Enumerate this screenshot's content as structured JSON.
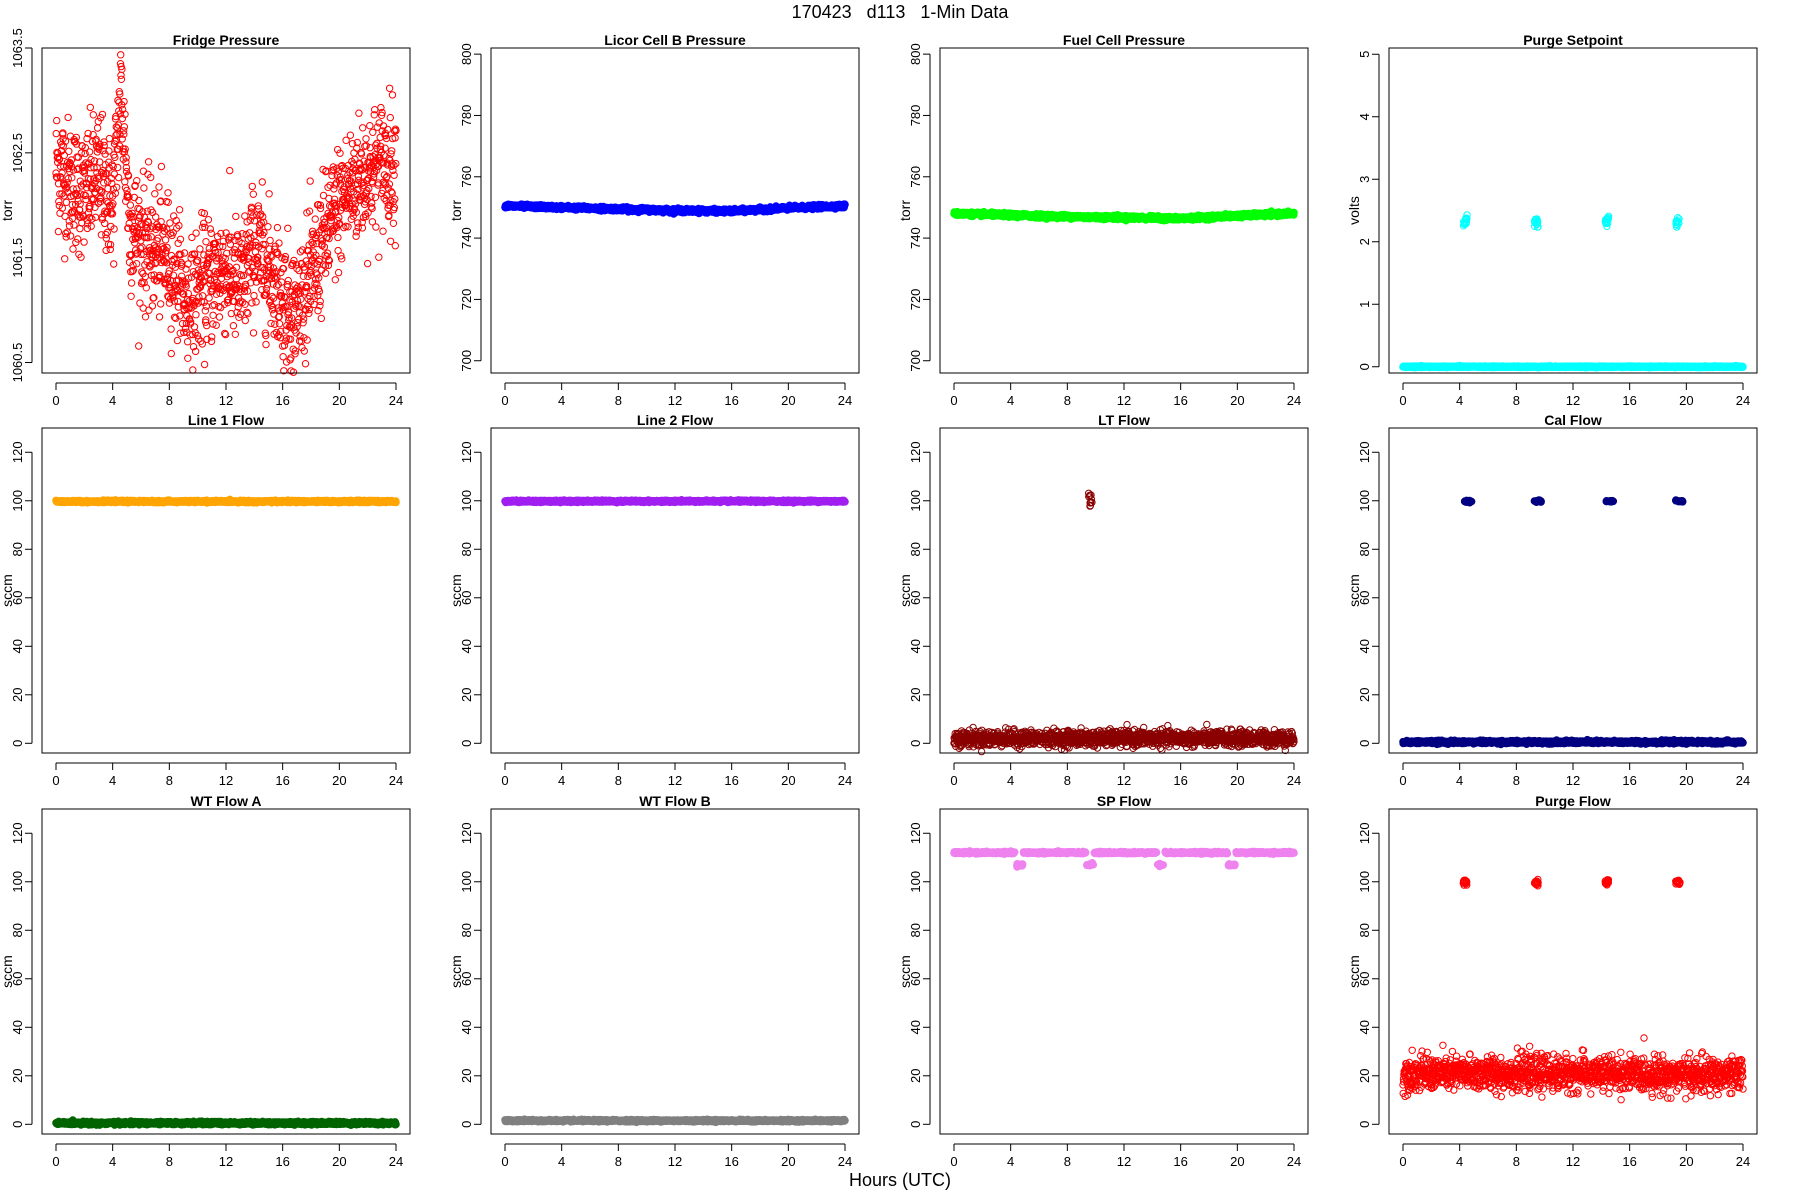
{
  "figure": {
    "title": "170423   d113   1-Min Data",
    "xlabel": "Hours (UTC)"
  },
  "chart_data": [
    {
      "type": "scatter",
      "title": "Fridge Pressure",
      "ylabel": "torr",
      "xlim": [
        0,
        24
      ],
      "xticks": [
        0,
        4,
        8,
        12,
        16,
        20,
        24
      ],
      "ylim": [
        1060.4,
        1063.5
      ],
      "yticks": [
        1060.5,
        1061.5,
        1062.5,
        1063.5
      ],
      "series": [
        {
          "color": "#ff0000",
          "marker": "open-circle",
          "density": 1440,
          "spread": 0.3,
          "trend": [
            [
              0,
              1062.4
            ],
            [
              1,
              1062.2
            ],
            [
              2,
              1062.1
            ],
            [
              3,
              1062.3
            ],
            [
              4,
              1062.0
            ],
            [
              4.6,
              1063.1
            ],
            [
              5.2,
              1061.8
            ],
            [
              6.5,
              1061.6
            ],
            [
              8,
              1061.5
            ],
            [
              9.5,
              1061.0
            ],
            [
              10,
              1061.2
            ],
            [
              11,
              1061.3
            ],
            [
              12,
              1061.4
            ],
            [
              13,
              1061.2
            ],
            [
              14,
              1061.6
            ],
            [
              15,
              1061.4
            ],
            [
              16,
              1061.1
            ],
            [
              17,
              1061.0
            ],
            [
              18,
              1061.3
            ],
            [
              19,
              1061.7
            ],
            [
              20,
              1062.0
            ],
            [
              21,
              1062.2
            ],
            [
              22,
              1062.3
            ],
            [
              23,
              1062.4
            ],
            [
              24,
              1062.4
            ]
          ]
        }
      ]
    },
    {
      "type": "scatter",
      "title": "Licor Cell B Pressure",
      "ylabel": "torr",
      "xlim": [
        0,
        24
      ],
      "xticks": [
        0,
        4,
        8,
        12,
        16,
        20,
        24
      ],
      "ylim": [
        696,
        802
      ],
      "yticks": [
        700,
        720,
        740,
        760,
        780,
        800
      ],
      "series": [
        {
          "color": "#0000ff",
          "marker": "filled",
          "density": 1440,
          "spread": 0.3,
          "trend": [
            [
              0,
              750.5
            ],
            [
              4,
              750
            ],
            [
              8,
              749.5
            ],
            [
              12,
              749
            ],
            [
              16,
              748.8
            ],
            [
              20,
              749.8
            ],
            [
              24,
              750.5
            ]
          ]
        }
      ]
    },
    {
      "type": "scatter",
      "title": "Fuel Cell Pressure",
      "ylabel": "torr",
      "xlim": [
        0,
        24
      ],
      "xticks": [
        0,
        4,
        8,
        12,
        16,
        20,
        24
      ],
      "ylim": [
        696,
        802
      ],
      "yticks": [
        700,
        720,
        740,
        760,
        780,
        800
      ],
      "series": [
        {
          "color": "#00ff00",
          "marker": "filled",
          "density": 1440,
          "spread": 0.3,
          "trend": [
            [
              0,
              748
            ],
            [
              4,
              747.5
            ],
            [
              8,
              747
            ],
            [
              12,
              746.7
            ],
            [
              16,
              746.4
            ],
            [
              20,
              747.3
            ],
            [
              24,
              748
            ]
          ]
        }
      ]
    },
    {
      "type": "scatter",
      "title": "Purge Setpoint",
      "ylabel": "volts",
      "xlim": [
        0,
        24
      ],
      "xticks": [
        0,
        4,
        8,
        12,
        16,
        20,
        24
      ],
      "ylim": [
        -0.1,
        5.1
      ],
      "yticks": [
        0,
        1,
        2,
        3,
        4,
        5
      ],
      "series": [
        {
          "color": "#00ffff",
          "marker": "filled",
          "density": 1440,
          "spread": 0.005,
          "trend": [
            [
              0,
              0
            ],
            [
              24,
              0
            ]
          ]
        },
        {
          "color": "#00ffff",
          "marker": "open-circle",
          "clusters": [
            [
              4.4,
              2.33
            ],
            [
              9.4,
              2.31
            ],
            [
              14.4,
              2.33
            ],
            [
              19.4,
              2.31
            ]
          ],
          "cluster_width": 0.25,
          "cluster_spread": 0.05,
          "cluster_n": 14
        }
      ]
    },
    {
      "type": "scatter",
      "title": "Line 1 Flow",
      "ylabel": "sccm",
      "xlim": [
        0,
        24
      ],
      "xticks": [
        0,
        4,
        8,
        12,
        16,
        20,
        24
      ],
      "ylim": [
        -4,
        130
      ],
      "yticks": [
        0,
        20,
        40,
        60,
        80,
        100,
        120
      ],
      "series": [
        {
          "color": "#ffa500",
          "marker": "filled",
          "density": 1440,
          "spread": 0.2,
          "trend": [
            [
              0,
              99.7
            ],
            [
              24,
              99.7
            ]
          ]
        }
      ]
    },
    {
      "type": "scatter",
      "title": "Line 2 Flow",
      "ylabel": "sccm",
      "xlim": [
        0,
        24
      ],
      "xticks": [
        0,
        4,
        8,
        12,
        16,
        20,
        24
      ],
      "ylim": [
        -4,
        130
      ],
      "yticks": [
        0,
        20,
        40,
        60,
        80,
        100,
        120
      ],
      "series": [
        {
          "color": "#a020f0",
          "marker": "filled",
          "density": 1440,
          "spread": 0.2,
          "trend": [
            [
              0,
              99.8
            ],
            [
              24,
              99.8
            ]
          ]
        }
      ]
    },
    {
      "type": "scatter",
      "title": "LT Flow",
      "ylabel": "sccm",
      "xlim": [
        0,
        24
      ],
      "xticks": [
        0,
        4,
        8,
        12,
        16,
        20,
        24
      ],
      "ylim": [
        -4,
        130
      ],
      "yticks": [
        0,
        20,
        40,
        60,
        80,
        100,
        120
      ],
      "series": [
        {
          "color": "#8b0000",
          "marker": "open-circle",
          "density": 1440,
          "spread": 1.6,
          "trend": [
            [
              0,
              2
            ],
            [
              24,
              2
            ]
          ]
        },
        {
          "color": "#8b0000",
          "marker": "open-circle",
          "clusters": [
            [
              9.6,
              100
            ]
          ],
          "cluster_width": 0.3,
          "cluster_spread": 1.2,
          "cluster_n": 12
        }
      ]
    },
    {
      "type": "scatter",
      "title": "Cal Flow",
      "ylabel": "sccm",
      "xlim": [
        0,
        24
      ],
      "xticks": [
        0,
        4,
        8,
        12,
        16,
        20,
        24
      ],
      "ylim": [
        -4,
        130
      ],
      "yticks": [
        0,
        20,
        40,
        60,
        80,
        100,
        120
      ],
      "series": [
        {
          "color": "#000080",
          "marker": "filled",
          "density": 1440,
          "spread": 0.3,
          "trend": [
            [
              0,
              0.5
            ],
            [
              24,
              0.5
            ]
          ]
        },
        {
          "color": "#000080",
          "marker": "filled",
          "clusters": [
            [
              4.6,
              99.8
            ],
            [
              9.5,
              99.8
            ],
            [
              14.6,
              99.8
            ],
            [
              19.5,
              99.8
            ]
          ],
          "cluster_width": 0.5,
          "cluster_spread": 0.2,
          "cluster_n": 20
        }
      ]
    },
    {
      "type": "scatter",
      "title": "WT Flow A",
      "ylabel": "sccm",
      "xlim": [
        0,
        24
      ],
      "xticks": [
        0,
        4,
        8,
        12,
        16,
        20,
        24
      ],
      "ylim": [
        -4,
        130
      ],
      "yticks": [
        0,
        20,
        40,
        60,
        80,
        100,
        120
      ],
      "series": [
        {
          "color": "#006400",
          "marker": "filled",
          "density": 1440,
          "spread": 0.3,
          "trend": [
            [
              0,
              0.5
            ],
            [
              24,
              0.5
            ]
          ]
        }
      ]
    },
    {
      "type": "scatter",
      "title": "WT Flow B",
      "ylabel": "sccm",
      "xlim": [
        0,
        24
      ],
      "xticks": [
        0,
        4,
        8,
        12,
        16,
        20,
        24
      ],
      "ylim": [
        -4,
        130
      ],
      "yticks": [
        0,
        20,
        40,
        60,
        80,
        100,
        120
      ],
      "series": [
        {
          "color": "#808080",
          "marker": "filled",
          "density": 1440,
          "spread": 0.2,
          "trend": [
            [
              0,
              1.5
            ],
            [
              24,
              1.5
            ]
          ]
        }
      ]
    },
    {
      "type": "scatter",
      "title": "SP Flow",
      "ylabel": "sccm",
      "xlim": [
        0,
        24
      ],
      "xticks": [
        0,
        4,
        8,
        12,
        16,
        20,
        24
      ],
      "ylim": [
        -4,
        130
      ],
      "yticks": [
        0,
        20,
        40,
        60,
        80,
        100,
        120
      ],
      "series": [
        {
          "color": "#ee82ee",
          "marker": "filled",
          "density": 1440,
          "spread": 0.2,
          "trend": [
            [
              0,
              112
            ],
            [
              24,
              112
            ]
          ],
          "gaps": [
            [
              4.3,
              4.9
            ],
            [
              9.3,
              9.9
            ],
            [
              14.3,
              14.9
            ],
            [
              19.3,
              19.9
            ]
          ]
        },
        {
          "color": "#ee82ee",
          "marker": "filled",
          "clusters": [
            [
              4.6,
              107
            ],
            [
              9.6,
              107
            ],
            [
              14.6,
              107
            ],
            [
              19.6,
              107
            ]
          ],
          "cluster_width": 0.5,
          "cluster_spread": 0.3,
          "cluster_n": 18
        }
      ]
    },
    {
      "type": "scatter",
      "title": "Purge Flow",
      "ylabel": "sccm",
      "xlim": [
        0,
        24
      ],
      "xticks": [
        0,
        4,
        8,
        12,
        16,
        20,
        24
      ],
      "ylim": [
        -4,
        130
      ],
      "yticks": [
        0,
        20,
        40,
        60,
        80,
        100,
        120
      ],
      "series": [
        {
          "color": "#ff0000",
          "marker": "open-circle",
          "density": 1440,
          "spread": 3.5,
          "trend": [
            [
              0,
              21
            ],
            [
              12,
              21
            ],
            [
              24,
              20
            ]
          ]
        },
        {
          "color": "#ff0000",
          "marker": "open-circle",
          "clusters": [
            [
              4.4,
              99.8
            ],
            [
              9.4,
              99.8
            ],
            [
              14.4,
              99.8
            ],
            [
              19.4,
              99.8
            ]
          ],
          "cluster_width": 0.3,
          "cluster_spread": 0.6,
          "cluster_n": 16
        }
      ]
    }
  ]
}
